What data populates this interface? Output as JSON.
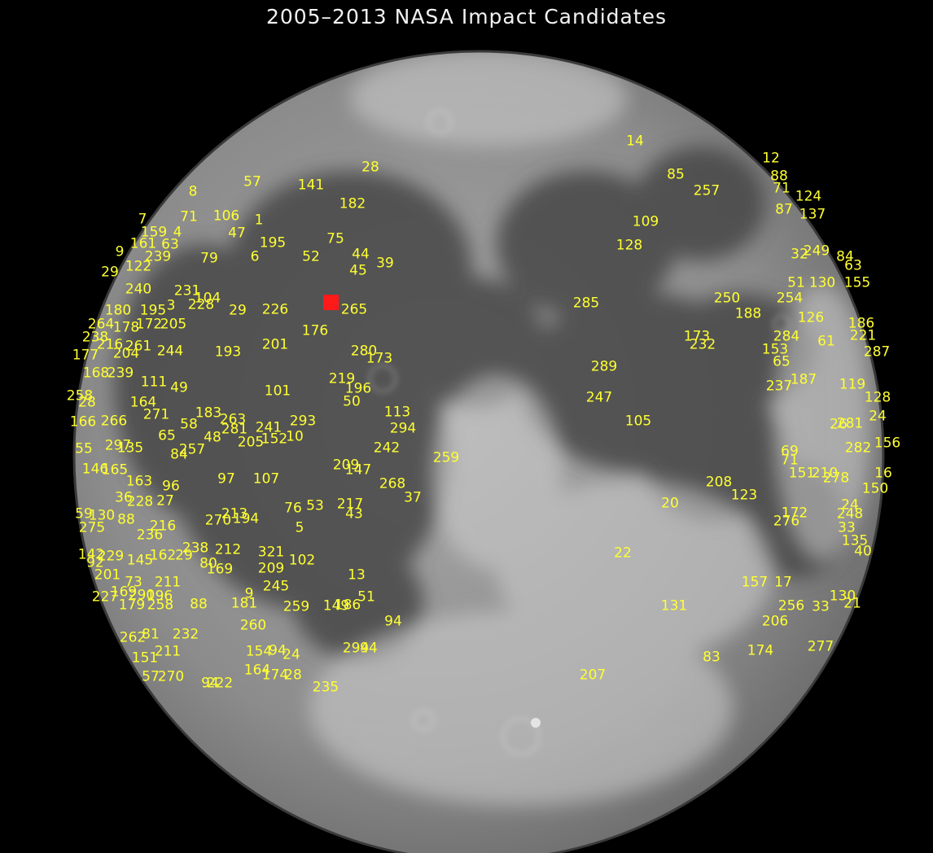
{
  "title": "2005–2013 NASA Impact Candidates",
  "colors": {
    "background": "#000000",
    "label": "#ffff33",
    "title": "#f2f2f2",
    "highlight_marker": "#ff1a1a",
    "moon_light": "#b4b4b4",
    "moon_dark": "#505050"
  },
  "labels": [
    "14",
    "12",
    "88",
    "85",
    "257",
    "71",
    "124",
    "87",
    "137",
    "109",
    "128",
    "32",
    "249",
    "84",
    "63",
    "51",
    "130",
    "155",
    "250",
    "254",
    "188",
    "126",
    "186",
    "285",
    "173",
    "232",
    "284",
    "61",
    "221",
    "287",
    "153",
    "65",
    "289",
    "187",
    "237",
    "119",
    "128",
    "247",
    "105",
    "26",
    "24",
    "281",
    "156",
    "282",
    "69",
    "71",
    "151",
    "210",
    "278",
    "16",
    "208",
    "123",
    "150",
    "20",
    "172",
    "276",
    "248",
    "24",
    "33",
    "135",
    "40",
    "22",
    "157",
    "17",
    "130",
    "21",
    "256",
    "33",
    "131",
    "206",
    "83",
    "174",
    "277",
    "207",
    "28",
    "57",
    "141",
    "8",
    "182",
    "71",
    "106",
    "1",
    "47",
    "195",
    "75",
    "52",
    "6",
    "79",
    "44",
    "45",
    "39",
    "7",
    "159",
    "4",
    "9",
    "161",
    "63",
    "239",
    "122",
    "29",
    "240",
    "231",
    "104",
    "3",
    "228",
    "29",
    "226",
    "265",
    "176",
    "180",
    "195",
    "172",
    "205",
    "264",
    "178",
    "238",
    "216",
    "261",
    "244",
    "193",
    "201",
    "280",
    "173",
    "177",
    "204",
    "168",
    "239",
    "111",
    "49",
    "101",
    "219",
    "196",
    "50",
    "258",
    "28",
    "164",
    "271",
    "113",
    "294",
    "166",
    "266",
    "183",
    "58",
    "263",
    "281",
    "241",
    "293",
    "65",
    "48",
    "205",
    "152",
    "10",
    "55",
    "297",
    "135",
    "257",
    "84",
    "242",
    "259",
    "209",
    "147",
    "146",
    "165",
    "163",
    "96",
    "97",
    "107",
    "268",
    "37",
    "36",
    "228",
    "27",
    "76",
    "53",
    "217",
    "43",
    "59",
    "130",
    "88",
    "275",
    "270",
    "213",
    "194",
    "5",
    "216",
    "236",
    "238",
    "212",
    "142",
    "229",
    "145",
    "162",
    "29",
    "321",
    "102",
    "92",
    "80",
    "169",
    "209",
    "201",
    "73",
    "211",
    "227",
    "169",
    "290",
    "196",
    "88",
    "181",
    "9",
    "245",
    "259",
    "149",
    "186",
    "51",
    "179",
    "258",
    "13",
    "260",
    "94",
    "262",
    "81",
    "232",
    "211",
    "154",
    "94",
    "24",
    "94",
    "294",
    "151",
    "164",
    "174",
    "28",
    "235",
    "57",
    "270",
    "94",
    "222"
  ]
}
